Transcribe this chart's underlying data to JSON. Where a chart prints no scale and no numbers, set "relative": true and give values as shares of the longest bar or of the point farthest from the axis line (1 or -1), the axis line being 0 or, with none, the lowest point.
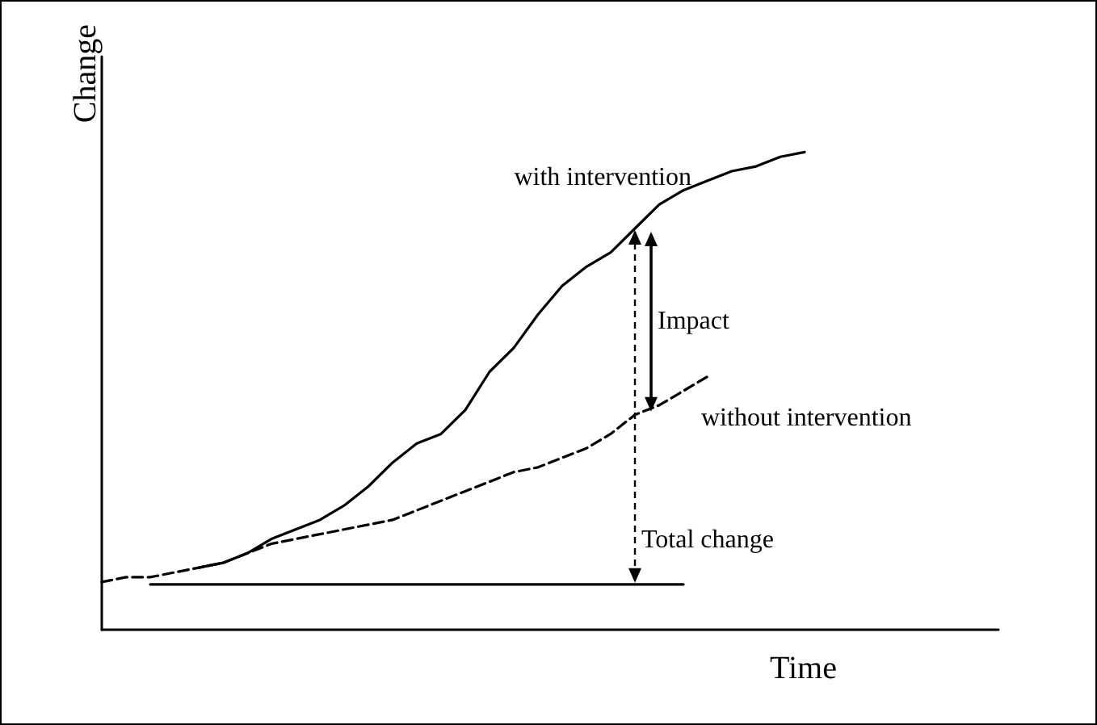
{
  "chart_data": {
    "type": "line",
    "relative": true,
    "xlabel": "Time",
    "ylabel": "Change",
    "marker": "none",
    "categories": [
      null,
      null,
      null,
      null,
      null,
      null,
      null,
      null,
      null,
      null,
      null,
      null,
      null,
      null,
      null,
      null,
      null,
      null,
      null,
      null,
      null,
      null,
      null,
      null,
      null,
      null,
      null,
      null,
      null,
      null,
      null,
      null,
      null,
      null,
      null,
      null,
      null,
      null
    ],
    "series": [
      {
        "name": "with intervention",
        "color": "#000000",
        "line_style": "solid",
        "values": [
          null,
          null,
          null,
          null,
          0.13,
          0.14,
          0.16,
          0.19,
          0.21,
          0.23,
          0.26,
          0.3,
          0.35,
          0.39,
          0.41,
          0.46,
          0.54,
          0.59,
          0.66,
          0.72,
          0.76,
          0.79,
          0.84,
          0.89,
          0.92,
          0.94,
          0.96,
          0.97,
          0.99,
          1.0,
          null,
          null,
          null,
          null,
          null,
          null,
          null,
          null
        ]
      },
      {
        "name": "without intervention",
        "color": "#000000",
        "line_style": "dashed",
        "values": [
          0.1,
          0.11,
          0.11,
          0.12,
          0.13,
          0.14,
          0.16,
          0.18,
          0.19,
          0.2,
          0.21,
          0.22,
          0.23,
          0.25,
          0.27,
          0.29,
          0.31,
          0.33,
          0.34,
          0.36,
          0.38,
          0.41,
          0.45,
          0.47,
          0.5,
          0.53,
          null,
          null,
          null,
          null,
          null,
          null,
          null,
          null,
          null,
          null,
          null,
          null
        ]
      },
      {
        "color": "#000000",
        "line_style": "solid",
        "values": [
          null,
          null,
          0.095,
          0.095,
          0.095,
          0.095,
          0.095,
          0.095,
          0.095,
          0.095,
          0.095,
          0.095,
          0.095,
          0.095,
          0.095,
          0.095,
          0.095,
          0.095,
          0.095,
          0.095,
          0.095,
          0.095,
          0.095,
          0.095,
          0.095,
          null,
          null,
          null,
          null,
          null,
          null,
          null,
          null,
          null,
          null,
          null,
          null,
          null
        ]
      }
    ],
    "annotations": [
      "Impact",
      "Total change"
    ]
  }
}
